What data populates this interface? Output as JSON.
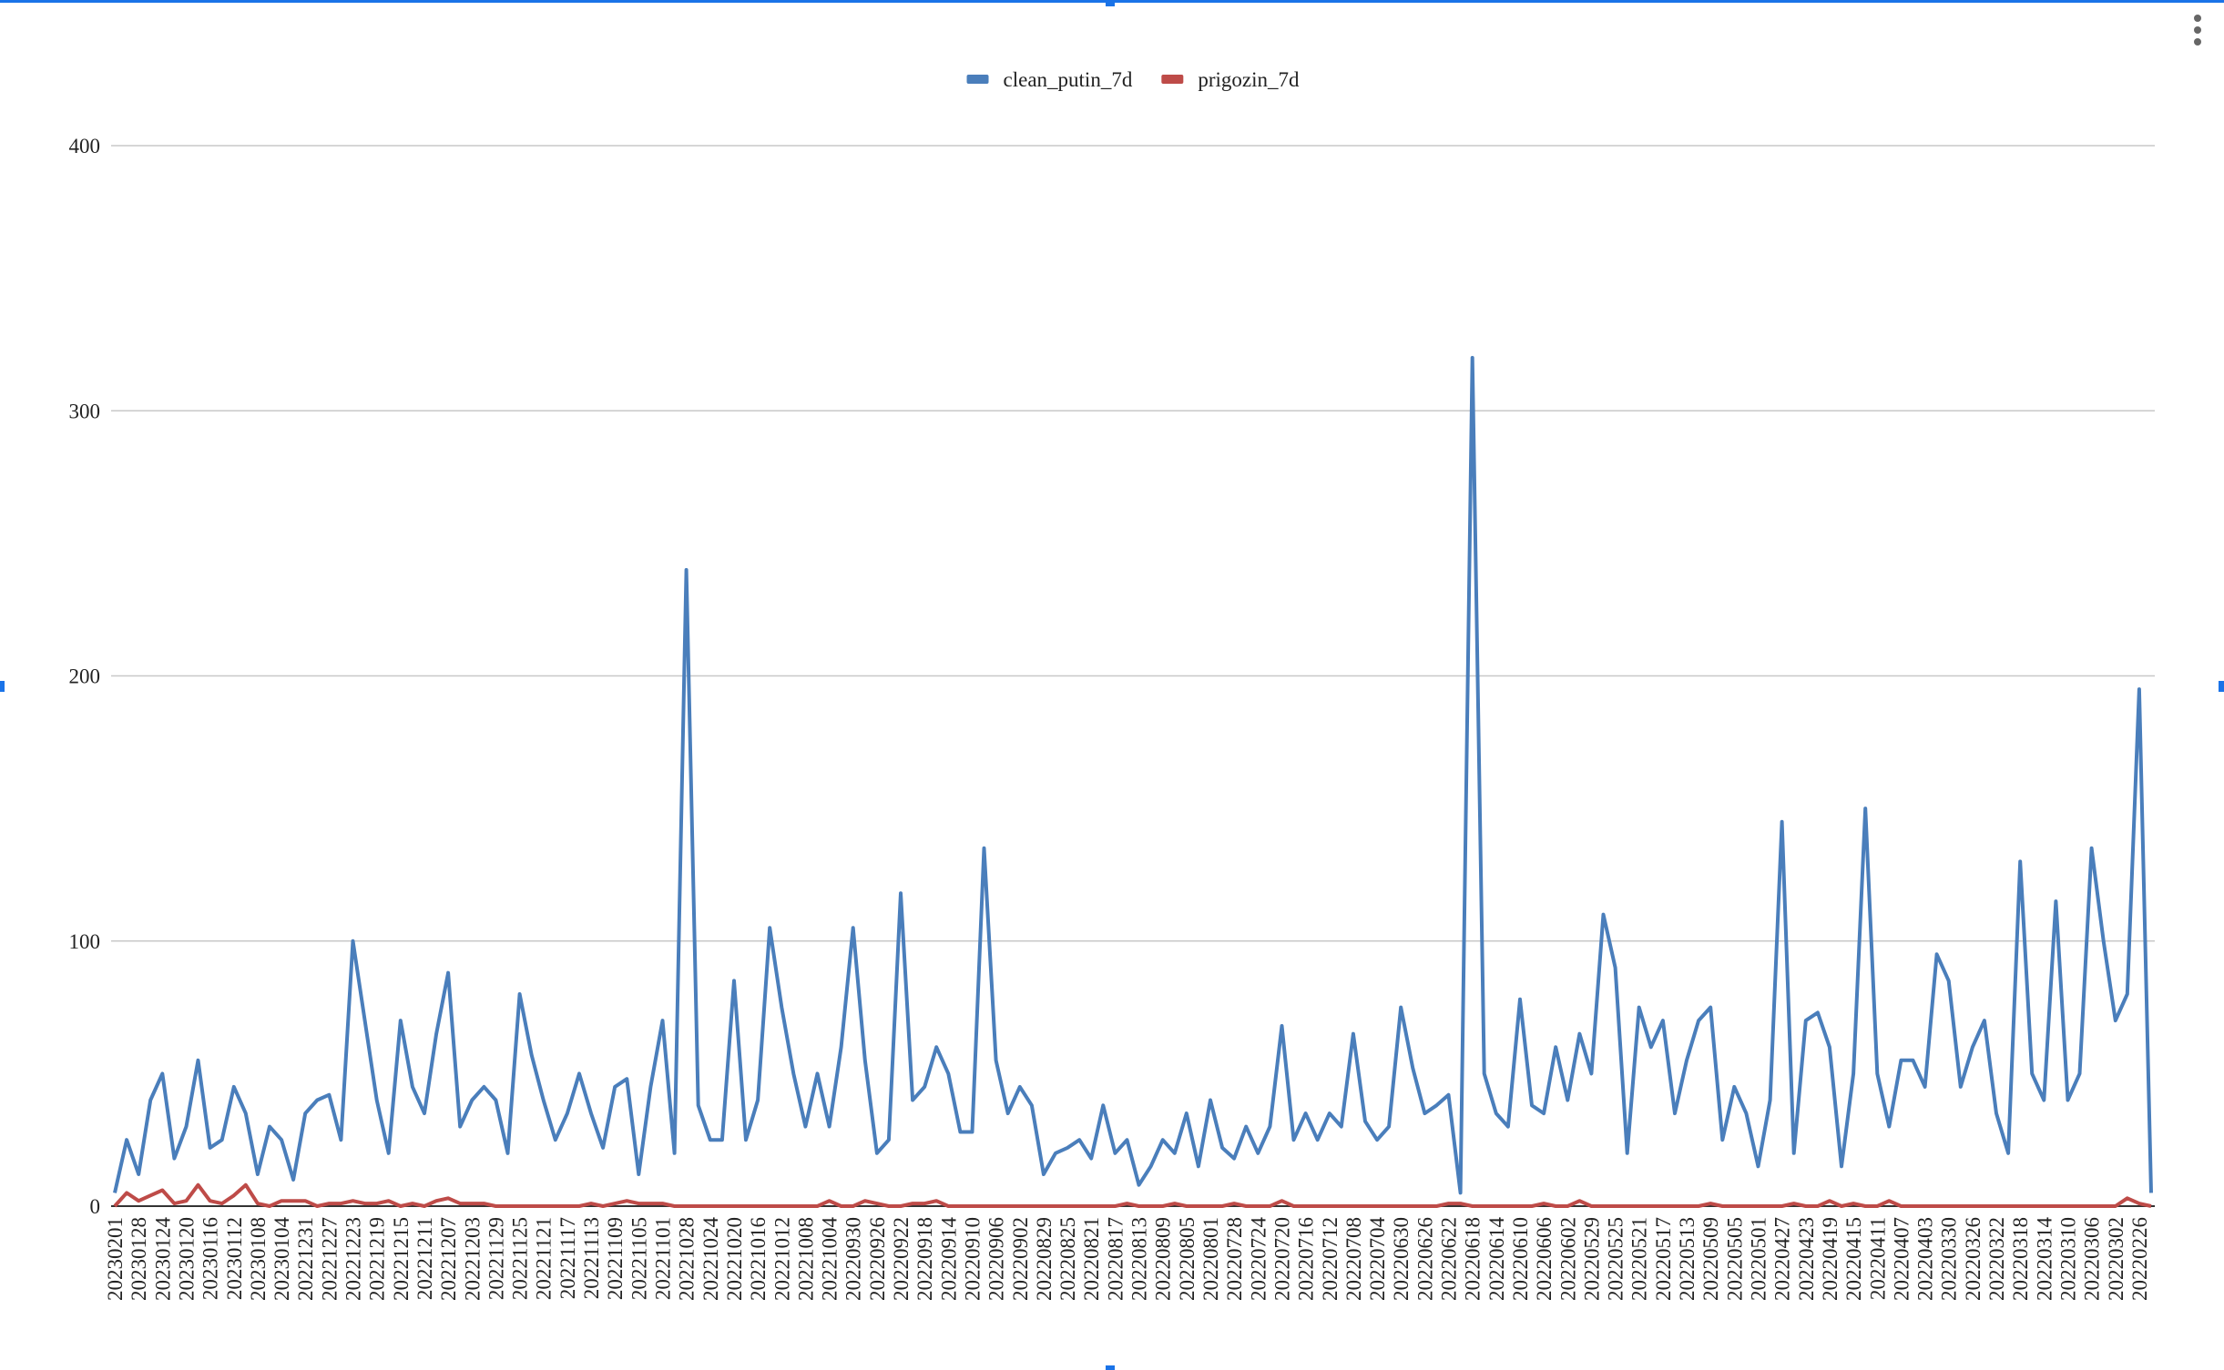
{
  "chart_data": {
    "type": "line",
    "categories": [
      "20230201",
      null,
      "20230128",
      null,
      "20230124",
      null,
      "20230120",
      null,
      "20230116",
      null,
      "20230112",
      null,
      "20230108",
      null,
      "20230104",
      null,
      "20221231",
      null,
      "20221227",
      null,
      "20221223",
      null,
      "20221219",
      null,
      "20221215",
      null,
      "20221211",
      null,
      "20221207",
      null,
      "20221203",
      null,
      "20221129",
      null,
      "20221125",
      null,
      "20221121",
      null,
      "20221117",
      null,
      "20221113",
      null,
      "20221109",
      null,
      "20221105",
      null,
      "20221101",
      null,
      "20221028",
      null,
      "20221024",
      null,
      "20221020",
      null,
      "20221016",
      null,
      "20221012",
      null,
      "20221008",
      null,
      "20221004",
      null,
      "20220930",
      null,
      "20220926",
      null,
      "20220922",
      null,
      "20220918",
      null,
      "20220914",
      null,
      "20220910",
      null,
      "20220906",
      null,
      "20220902",
      null,
      "20220829",
      null,
      "20220825",
      null,
      "20220821",
      null,
      "20220817",
      null,
      "20220813",
      null,
      "20220809",
      null,
      "20220805",
      null,
      "20220801",
      null,
      "20220728",
      null,
      "20220724",
      null,
      "20220720",
      null,
      "20220716",
      null,
      "20220712",
      null,
      "20220708",
      null,
      "20220704",
      null,
      "20220630",
      null,
      "20220626",
      null,
      "20220622",
      null,
      "20220618",
      null,
      "20220614",
      null,
      "20220610",
      null,
      "20220606",
      null,
      "20220602",
      null,
      "20220529",
      null,
      "20220525",
      null,
      "20220521",
      null,
      "20220517",
      null,
      "20220513",
      null,
      "20220509",
      null,
      "20220505",
      null,
      "20220501",
      null,
      "20220427",
      null,
      "20220423",
      null,
      "20220419",
      null,
      "20220415",
      null,
      "20220411",
      null,
      "20220407",
      null,
      "20220403",
      null,
      "20220330",
      null,
      "20220326",
      null,
      "20220322",
      null,
      "20220318",
      null,
      "20220314",
      null,
      "20220310",
      null,
      "20220306",
      null,
      "20220302",
      null,
      "20220226",
      null
    ],
    "series": [
      {
        "name": "clean_putin_7d",
        "color": "#4a7ebb",
        "values": [
          5,
          25,
          12,
          40,
          50,
          18,
          30,
          55,
          22,
          25,
          45,
          35,
          12,
          30,
          25,
          10,
          35,
          40,
          42,
          25,
          100,
          70,
          40,
          20,
          70,
          45,
          35,
          65,
          88,
          30,
          40,
          45,
          40,
          20,
          80,
          57,
          40,
          25,
          35,
          50,
          35,
          22,
          45,
          48,
          12,
          45,
          70,
          20,
          240,
          38,
          25,
          25,
          85,
          25,
          40,
          105,
          75,
          50,
          30,
          50,
          30,
          60,
          105,
          55,
          20,
          25,
          118,
          40,
          45,
          60,
          50,
          28,
          28,
          135,
          55,
          35,
          45,
          38,
          12,
          20,
          22,
          25,
          18,
          38,
          20,
          25,
          8,
          15,
          25,
          20,
          35,
          15,
          40,
          22,
          18,
          30,
          20,
          30,
          68,
          25,
          35,
          25,
          35,
          30,
          65,
          32,
          25,
          30,
          75,
          52,
          35,
          38,
          42,
          5,
          320,
          50,
          35,
          30,
          78,
          38,
          35,
          60,
          40,
          65,
          50,
          110,
          90,
          20,
          75,
          60,
          70,
          35,
          55,
          70,
          75,
          25,
          45,
          35,
          15,
          40,
          145,
          20,
          70,
          73,
          60,
          15,
          50,
          150,
          50,
          30,
          55,
          55,
          45,
          95,
          85,
          45,
          60,
          70,
          35,
          20,
          130,
          50,
          40,
          115,
          40,
          50,
          135,
          100,
          70,
          80,
          195,
          5
        ]
      },
      {
        "name": "prigozin_7d",
        "color": "#be4b48",
        "values": [
          0,
          5,
          2,
          4,
          6,
          1,
          2,
          8,
          2,
          1,
          4,
          8,
          1,
          0,
          2,
          2,
          2,
          0,
          1,
          1,
          2,
          1,
          1,
          2,
          0,
          1,
          0,
          2,
          3,
          1,
          1,
          1,
          0,
          0,
          0,
          0,
          0,
          0,
          0,
          0,
          1,
          0,
          1,
          2,
          1,
          1,
          1,
          0,
          0,
          0,
          0,
          0,
          0,
          0,
          0,
          0,
          0,
          0,
          0,
          0,
          2,
          0,
          0,
          2,
          1,
          0,
          0,
          1,
          1,
          2,
          0,
          0,
          0,
          0,
          0,
          0,
          0,
          0,
          0,
          0,
          0,
          0,
          0,
          0,
          0,
          1,
          0,
          0,
          0,
          1,
          0,
          0,
          0,
          0,
          1,
          0,
          0,
          0,
          2,
          0,
          0,
          0,
          0,
          0,
          0,
          0,
          0,
          0,
          0,
          0,
          0,
          0,
          1,
          1,
          0,
          0,
          0,
          0,
          0,
          0,
          1,
          0,
          0,
          2,
          0,
          0,
          0,
          0,
          0,
          0,
          0,
          0,
          0,
          0,
          1,
          0,
          0,
          0,
          0,
          0,
          0,
          1,
          0,
          0,
          2,
          0,
          1,
          0,
          0,
          2,
          0,
          0,
          0,
          0,
          0,
          0,
          0,
          0,
          0,
          0,
          0,
          0,
          0,
          0,
          0,
          0,
          0,
          0,
          0,
          3,
          1,
          0
        ]
      }
    ],
    "ylim": [
      0,
      400
    ],
    "yticks": [
      0,
      100,
      200,
      300,
      400
    ],
    "grid": true,
    "legend": "top"
  }
}
